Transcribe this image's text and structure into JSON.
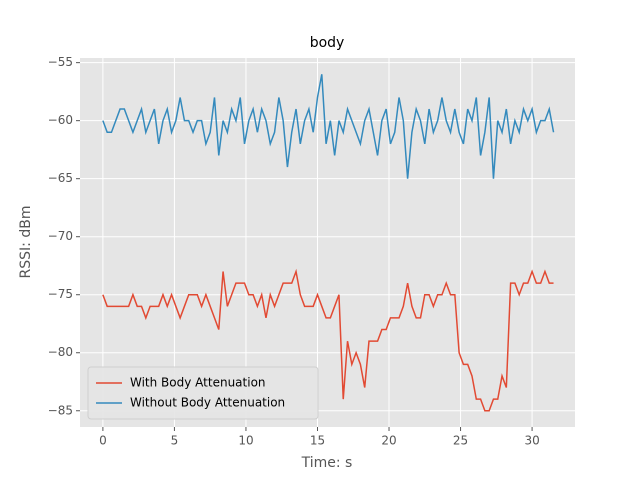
{
  "chart_data": {
    "type": "line",
    "title": "body",
    "xlabel": "Time: s",
    "ylabel": "RSSI: dBm",
    "x": [
      0,
      0.3,
      0.6,
      0.9,
      1.2,
      1.5,
      1.8,
      2.1,
      2.4,
      2.7,
      3,
      3.3,
      3.6,
      3.9,
      4.2,
      4.5,
      4.8,
      5.1,
      5.4,
      5.7,
      6,
      6.3,
      6.6,
      6.9,
      7.2,
      7.5,
      7.8,
      8.1,
      8.4,
      8.7,
      9,
      9.3,
      9.6,
      9.9,
      10.2,
      10.5,
      10.8,
      11.1,
      11.4,
      11.7,
      12,
      12.3,
      12.6,
      12.9,
      13.2,
      13.5,
      13.8,
      14.1,
      14.4,
      14.7,
      15,
      15.3,
      15.6,
      15.9,
      16.2,
      16.5,
      16.8,
      17.1,
      17.4,
      17.7,
      18,
      18.3,
      18.6,
      18.9,
      19.2,
      19.5,
      19.8,
      20.1,
      20.4,
      20.7,
      21,
      21.3,
      21.6,
      21.9,
      22.2,
      22.5,
      22.8,
      23.1,
      23.4,
      23.7,
      24,
      24.3,
      24.6,
      24.9,
      25.2,
      25.5,
      25.8,
      26.1,
      26.4,
      26.7,
      27,
      27.3,
      27.6,
      27.9,
      28.2,
      28.5,
      28.8,
      29.1,
      29.4,
      29.7,
      30,
      30.3,
      30.6,
      30.9,
      31.2,
      31.5
    ],
    "series": [
      {
        "name": "With Body Attenuation",
        "color": "#E24A33",
        "values": [
          -75,
          -76,
          -76,
          -76,
          -76,
          -76,
          -76,
          -75,
          -76,
          -76,
          -77,
          -76,
          -76,
          -76,
          -75,
          -76,
          -75,
          -76,
          -77,
          -76,
          -75,
          -75,
          -75,
          -76,
          -75,
          -76,
          -77,
          -78,
          -73,
          -76,
          -75,
          -74,
          -74,
          -74,
          -75,
          -75,
          -76,
          -75,
          -77,
          -75,
          -76,
          -75,
          -74,
          -74,
          -74,
          -73,
          -75,
          -76,
          -76,
          -76,
          -75,
          -76,
          -77,
          -77,
          -76,
          -75,
          -84,
          -79,
          -81,
          -80,
          -81,
          -83,
          -79,
          -79,
          -79,
          -78,
          -78,
          -77,
          -77,
          -77,
          -76,
          -74,
          -76,
          -77,
          -77,
          -75,
          -75,
          -76,
          -75,
          -75,
          -74,
          -75,
          -75,
          -80,
          -81,
          -81,
          -82,
          -84,
          -84,
          -85,
          -85,
          -84,
          -84,
          -82,
          -83,
          -74,
          -74,
          -75,
          -74,
          -74,
          -73,
          -74,
          -74,
          -73,
          -74,
          -74
        ]
      },
      {
        "name": "Without Body Attenuation",
        "color": "#348ABD",
        "values": [
          -60,
          -61,
          -61,
          -60,
          -59,
          -59,
          -60,
          -61,
          -60,
          -59,
          -61,
          -60,
          -59,
          -62,
          -60,
          -59,
          -61,
          -60,
          -58,
          -60,
          -60,
          -61,
          -60,
          -60,
          -62,
          -61,
          -58,
          -63,
          -60,
          -61,
          -59,
          -60,
          -58,
          -62,
          -60,
          -59,
          -61,
          -59,
          -60,
          -62,
          -61,
          -58,
          -60,
          -64,
          -61,
          -59,
          -62,
          -60,
          -59,
          -61,
          -58,
          -56,
          -62,
          -60,
          -63,
          -60,
          -61,
          -59,
          -60,
          -61,
          -62,
          -60,
          -59,
          -61,
          -63,
          -60,
          -59,
          -62,
          -61,
          -58,
          -60,
          -65,
          -61,
          -59,
          -60,
          -62,
          -59,
          -61,
          -60,
          -58,
          -60,
          -61,
          -59,
          -61,
          -62,
          -59,
          -60,
          -58,
          -63,
          -61,
          -58,
          -65,
          -60,
          -61,
          -59,
          -62,
          -60,
          -61,
          -59,
          -60,
          -59,
          -61,
          -60,
          -60,
          -59,
          -61
        ]
      }
    ],
    "xlim": [
      -1.6,
      33.0
    ],
    "ylim": [
      -86.4,
      -54.6
    ],
    "xticks": [
      0,
      5,
      10,
      15,
      20,
      25,
      30
    ],
    "yticks": [
      {
        "value": -85,
        "label": "−85"
      },
      {
        "value": -80,
        "label": "−80"
      },
      {
        "value": -75,
        "label": "−75"
      },
      {
        "value": -70,
        "label": "−70"
      },
      {
        "value": -65,
        "label": "−65"
      },
      {
        "value": -60,
        "label": "−60"
      },
      {
        "value": -55,
        "label": "−55"
      }
    ],
    "grid": true,
    "legend": "lower left"
  }
}
